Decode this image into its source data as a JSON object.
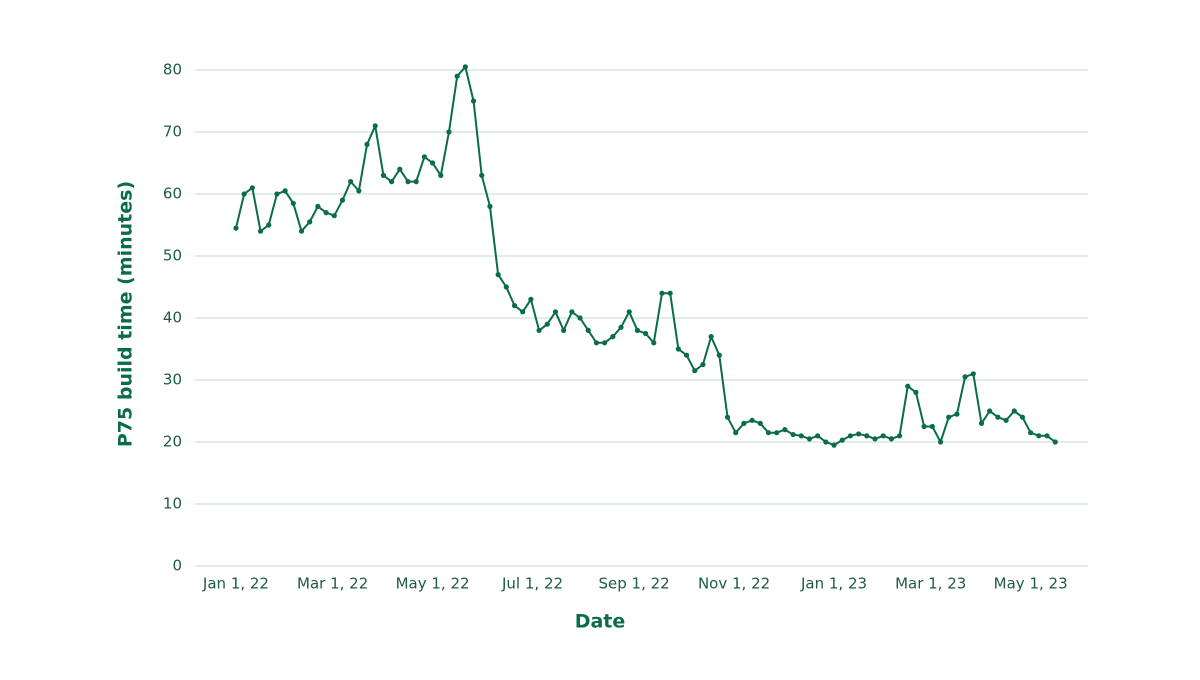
{
  "chart_data": {
    "type": "line",
    "y_label": "P75 build time (minutes)",
    "x_label": "Date",
    "color": "#0b6b4d",
    "grid": true,
    "markers": true,
    "x": [
      "2022-01-01",
      "2022-01-06",
      "2022-01-11",
      "2022-01-16",
      "2022-01-21",
      "2022-01-26",
      "2022-01-31",
      "2022-02-05",
      "2022-02-10",
      "2022-02-15",
      "2022-02-20",
      "2022-02-25",
      "2022-03-02",
      "2022-03-07",
      "2022-03-12",
      "2022-03-17",
      "2022-03-22",
      "2022-03-27",
      "2022-04-01",
      "2022-04-06",
      "2022-04-11",
      "2022-04-16",
      "2022-04-21",
      "2022-04-26",
      "2022-05-01",
      "2022-05-06",
      "2022-05-11",
      "2022-05-16",
      "2022-05-21",
      "2022-05-26",
      "2022-05-31",
      "2022-06-05",
      "2022-06-10",
      "2022-06-15",
      "2022-06-20",
      "2022-06-25",
      "2022-06-30",
      "2022-07-05",
      "2022-07-10",
      "2022-07-15",
      "2022-07-20",
      "2022-07-25",
      "2022-07-30",
      "2022-08-04",
      "2022-08-09",
      "2022-08-14",
      "2022-08-19",
      "2022-08-24",
      "2022-08-29",
      "2022-09-03",
      "2022-09-08",
      "2022-09-13",
      "2022-09-18",
      "2022-09-23",
      "2022-09-28",
      "2022-10-03",
      "2022-10-08",
      "2022-10-13",
      "2022-10-18",
      "2022-10-23",
      "2022-10-28",
      "2022-11-02",
      "2022-11-07",
      "2022-11-12",
      "2022-11-17",
      "2022-11-22",
      "2022-11-27",
      "2022-12-02",
      "2022-12-07",
      "2022-12-12",
      "2022-12-17",
      "2022-12-22",
      "2022-12-27",
      "2023-01-01",
      "2023-01-06",
      "2023-01-11",
      "2023-01-16",
      "2023-01-21",
      "2023-01-26",
      "2023-01-31",
      "2023-02-05",
      "2023-02-10",
      "2023-02-15",
      "2023-02-20",
      "2023-02-25",
      "2023-03-02",
      "2023-03-07",
      "2023-03-12",
      "2023-03-17",
      "2023-03-22",
      "2023-03-27",
      "2023-04-01",
      "2023-04-06",
      "2023-04-11",
      "2023-04-16",
      "2023-04-21",
      "2023-04-26",
      "2023-05-01",
      "2023-05-06",
      "2023-05-11",
      "2023-05-16"
    ],
    "values": [
      54.5,
      60,
      61,
      54,
      55,
      60,
      60.5,
      58.5,
      54,
      55.5,
      58,
      57,
      56.5,
      59,
      62,
      60.5,
      68,
      71,
      63,
      62,
      64,
      62,
      62,
      66,
      65,
      63,
      70,
      79,
      80.5,
      75,
      63,
      58,
      47,
      45,
      42,
      41,
      43,
      38,
      39,
      41,
      38,
      41,
      40,
      38,
      36,
      36,
      37,
      38.5,
      41,
      38,
      37.5,
      36,
      44,
      44,
      35,
      34,
      31.5,
      32.5,
      37,
      34,
      24,
      21.5,
      23,
      23.5,
      23,
      21.5,
      21.5,
      22,
      21.2,
      21,
      20.5,
      21,
      20,
      19.5,
      20.3,
      21,
      21.3,
      21,
      20.5,
      21,
      20.5,
      21,
      29,
      28,
      22.5,
      22.5,
      20,
      24,
      24.5,
      30.5,
      31,
      23,
      25,
      24,
      23.5,
      25,
      24,
      21.5,
      21,
      21,
      20
    ],
    "xlim": [
      "2021-12-07",
      "2023-06-05"
    ],
    "xticks": [
      {
        "value": "2022-01-01",
        "label": "Jan 1, 22"
      },
      {
        "value": "2022-03-01",
        "label": "Mar 1, 22"
      },
      {
        "value": "2022-05-01",
        "label": "May 1, 22"
      },
      {
        "value": "2022-07-01",
        "label": "Jul 1, 22"
      },
      {
        "value": "2022-09-01",
        "label": "Sep 1, 22"
      },
      {
        "value": "2022-11-01",
        "label": "Nov 1, 22"
      },
      {
        "value": "2023-01-01",
        "label": "Jan 1, 23"
      },
      {
        "value": "2023-03-01",
        "label": "Mar 1, 23"
      },
      {
        "value": "2023-05-01",
        "label": "May 1, 23"
      }
    ],
    "ylim": [
      0,
      80
    ],
    "yticks": [
      0,
      10,
      20,
      30,
      40,
      50,
      60,
      70,
      80
    ]
  }
}
